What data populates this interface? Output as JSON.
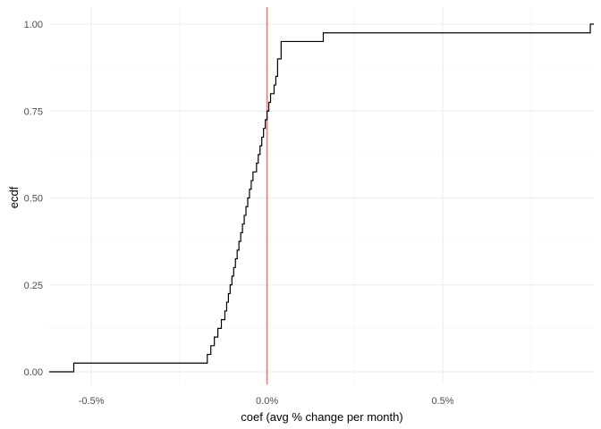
{
  "chart_data": {
    "type": "line",
    "subtype": "ecdf-step",
    "title": "",
    "xlabel": "coef (avg % change per month)",
    "ylabel": "ecdf",
    "xlim": [
      -0.62,
      0.93
    ],
    "ylim": [
      0,
      1
    ],
    "x_ticks": [
      -0.5,
      0.0,
      0.5
    ],
    "x_tick_labels": [
      "-0.5%",
      "0.0%",
      "0.5%"
    ],
    "y_ticks": [
      0,
      0.25,
      0.5,
      0.75,
      1
    ],
    "y_tick_labels": [
      "0.00",
      "0.25",
      "0.50",
      "0.75",
      "1.00"
    ],
    "grid": true,
    "legend": "none",
    "reference_line": {
      "x": 0.0,
      "color": "#f8766d"
    },
    "series": [
      {
        "color": "#000000",
        "x": [
          -0.55,
          -0.17,
          -0.16,
          -0.15,
          -0.14,
          -0.13,
          -0.12,
          -0.115,
          -0.11,
          -0.105,
          -0.1,
          -0.095,
          -0.09,
          -0.085,
          -0.08,
          -0.075,
          -0.07,
          -0.065,
          -0.06,
          -0.055,
          -0.05,
          -0.045,
          -0.04,
          -0.03,
          -0.025,
          -0.02,
          -0.015,
          -0.01,
          -0.005,
          0.0,
          0.005,
          0.01,
          0.02,
          0.025,
          0.03,
          0.04,
          0.16,
          0.92
        ],
        "y": [
          0.025,
          0.05,
          0.075,
          0.1,
          0.125,
          0.15,
          0.175,
          0.2,
          0.225,
          0.25,
          0.275,
          0.3,
          0.325,
          0.35,
          0.375,
          0.4,
          0.425,
          0.45,
          0.475,
          0.5,
          0.525,
          0.55,
          0.575,
          0.6,
          0.625,
          0.65,
          0.675,
          0.7,
          0.725,
          0.75,
          0.775,
          0.8,
          0.825,
          0.85,
          0.9,
          0.95,
          0.975,
          1.0
        ]
      }
    ]
  }
}
